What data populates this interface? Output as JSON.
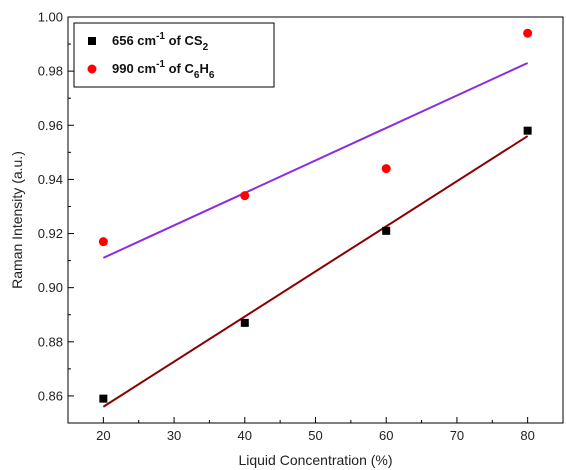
{
  "chart_data": {
    "type": "scatter",
    "xlabel": "Liquid Concentration (%)",
    "ylabel": "Raman Intensity (a.u.)",
    "xlim": [
      15,
      85
    ],
    "ylim": [
      0.85,
      1.0
    ],
    "x_ticks": [
      20,
      30,
      40,
      50,
      60,
      70,
      80
    ],
    "y_ticks": [
      0.86,
      0.88,
      0.9,
      0.92,
      0.94,
      0.96,
      0.98,
      1.0
    ],
    "x_tick_labels": [
      "20",
      "30",
      "40",
      "50",
      "60",
      "70",
      "80"
    ],
    "y_tick_labels": [
      "0.86",
      "0.88",
      "0.90",
      "0.92",
      "0.94",
      "0.96",
      "0.98",
      "1.00"
    ],
    "grid": false,
    "legend_position": "top-left",
    "series": [
      {
        "name": "656 cm-1 of CS2",
        "legend": {
          "pre": "656 cm",
          "sup": "-1",
          "mid": " of CS",
          "sub1": "2",
          "mid2": "",
          "sub2": ""
        },
        "marker": "square",
        "color": "#000000",
        "x": [
          20,
          40,
          60,
          80
        ],
        "y": [
          0.859,
          0.887,
          0.921,
          0.958
        ],
        "fit": {
          "x": [
            20,
            80
          ],
          "y": [
            0.856,
            0.956
          ],
          "color": "#8b0000"
        }
      },
      {
        "name": "990 cm-1 of C6H6",
        "legend": {
          "pre": "990 cm",
          "sup": "-1",
          "mid": " of C",
          "sub1": "6",
          "mid2": "H",
          "sub2": "6"
        },
        "marker": "circle",
        "color": "#ff0000",
        "x": [
          20,
          40,
          60,
          80
        ],
        "y": [
          0.917,
          0.934,
          0.944,
          0.994
        ],
        "fit": {
          "x": [
            20,
            80
          ],
          "y": [
            0.911,
            0.983
          ],
          "color": "#8b2be2"
        }
      }
    ]
  }
}
